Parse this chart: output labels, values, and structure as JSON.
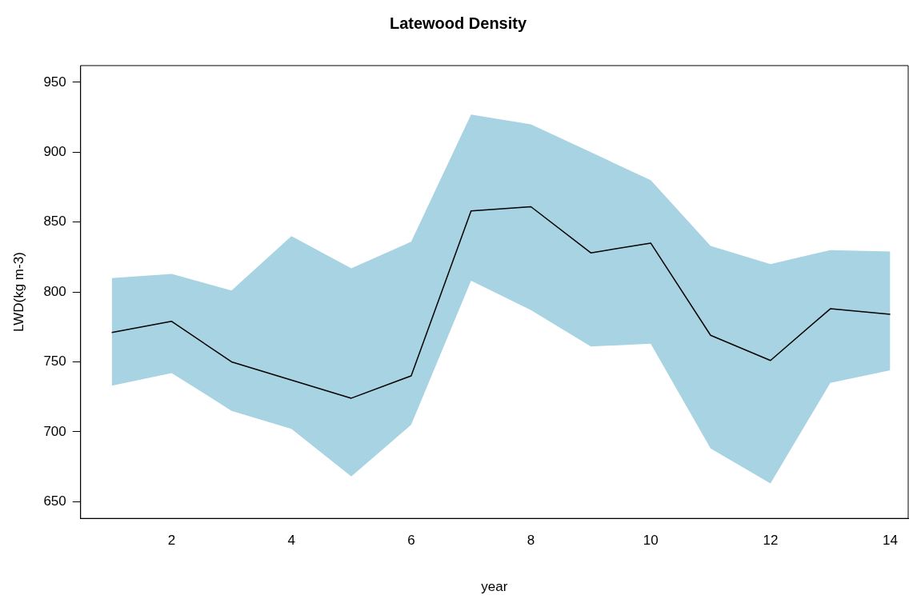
{
  "chart_data": {
    "type": "line",
    "title": "Latewood Density",
    "xlabel": "year",
    "ylabel": "LWD(kg m-3)",
    "x": [
      1,
      2,
      3,
      4,
      5,
      6,
      7,
      8,
      9,
      10,
      11,
      12,
      13,
      14
    ],
    "series": [
      {
        "color": "#000000",
        "values": [
          771,
          779,
          750,
          737,
          724,
          740,
          858,
          861,
          828,
          835,
          769,
          751,
          788,
          784
        ],
        "lower": [
          733,
          742,
          715,
          702,
          668,
          705,
          808,
          787,
          761,
          763,
          688,
          663,
          735,
          744
        ],
        "upper": [
          810,
          813,
          801,
          840,
          817,
          836,
          927,
          920,
          900,
          880,
          833,
          820,
          830,
          829
        ]
      }
    ],
    "xlim": [
      0.48,
      14.3
    ],
    "xticks": [
      2,
      4,
      6,
      8,
      10,
      12,
      14
    ],
    "ylim": [
      638,
      962
    ],
    "yticks": [
      650,
      700,
      750,
      800,
      850,
      900,
      950
    ],
    "grid": false,
    "legend": false,
    "marker": "none",
    "line_style": "solid"
  }
}
